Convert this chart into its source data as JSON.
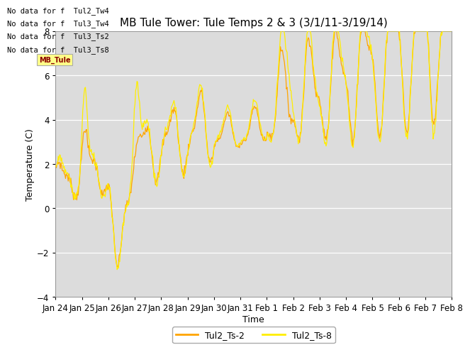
{
  "title": "MB Tule Tower: Tule Temps 2 & 3 (3/1/11-3/19/14)",
  "xlabel": "Time",
  "ylabel": "Temperature (C)",
  "ylim": [
    -4,
    8
  ],
  "yticks": [
    -4,
    -2,
    0,
    2,
    4,
    6,
    8
  ],
  "color_ts2": "#FFA500",
  "color_ts8": "#FFEE00",
  "background_color": "#DCDCDC",
  "legend_labels": [
    "Tul2_Ts-2",
    "Tul2_Ts-8"
  ],
  "no_data_texts": [
    "No data for f  Tul2_Tw4",
    "No data for f  Tul3_Tw4",
    "No data for f  Tul3_Ts2",
    "No data for f  Tul3_Ts8"
  ],
  "xtick_labels": [
    "Jan 24",
    "Jan 25",
    "Jan 26",
    "Jan 27",
    "Jan 28",
    "Jan 29",
    "Jan 30",
    "Jan 31",
    "Feb 1",
    "Feb 2",
    "Feb 3",
    "Feb 4",
    "Feb 5",
    "Feb 6",
    "Feb 7",
    "Feb 8"
  ],
  "title_fontsize": 11,
  "axis_fontsize": 9,
  "tick_fontsize": 8.5,
  "legend_fontsize": 9
}
